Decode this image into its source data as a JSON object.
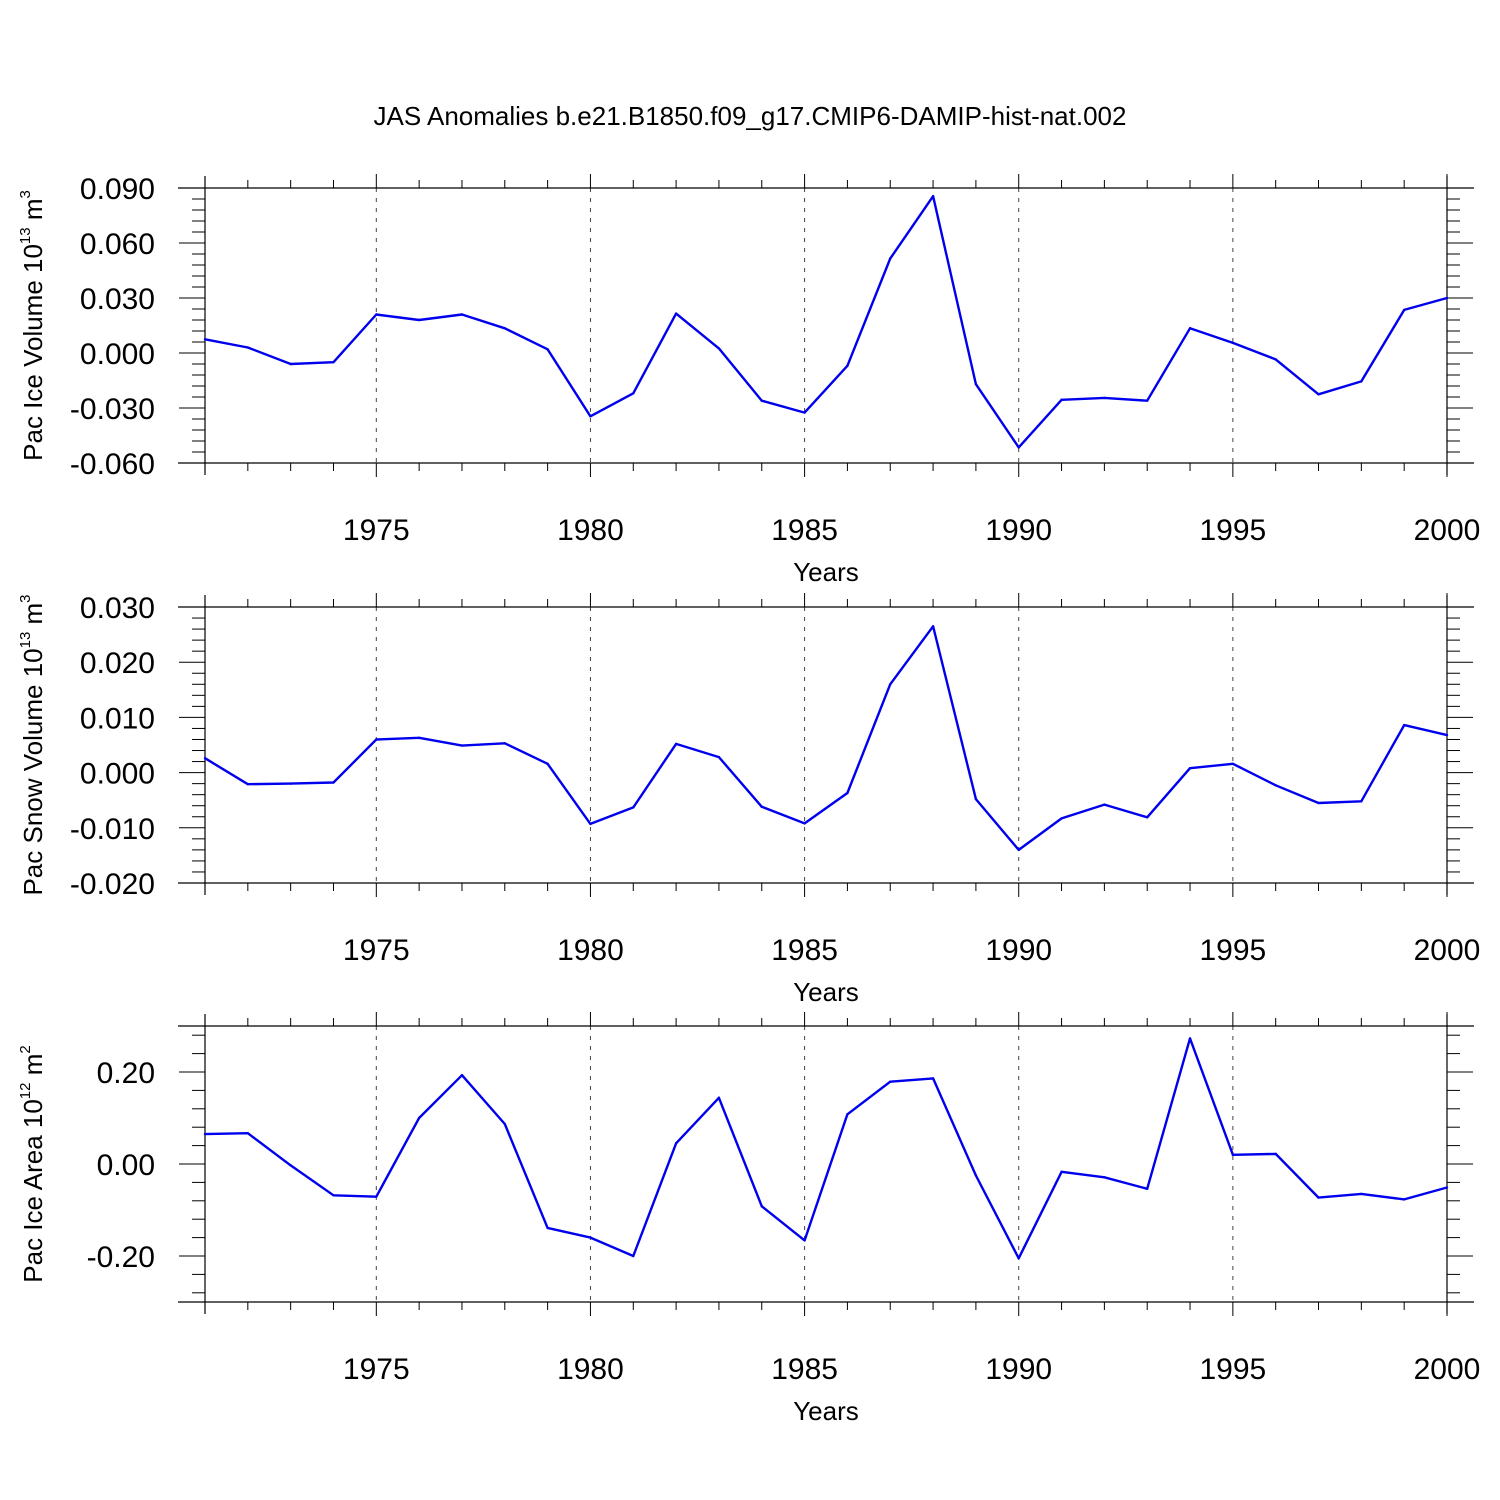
{
  "title": "JAS Anomalies b.e21.B1850.f09_g17.CMIP6-DAMIP-hist-nat.002",
  "line_color": "#0000ee",
  "chart_data": [
    {
      "type": "line",
      "ylabel": "Pac Ice Volume 10",
      "ylabel_sup": "13",
      "ylabel_unit": "m",
      "ylabel_unit_sup": "3",
      "xlabel": "Years",
      "xlim": [
        1971,
        2000
      ],
      "ylim": [
        -0.06,
        0.09
      ],
      "yticks": [
        -0.06,
        -0.03,
        0.0,
        0.03,
        0.06,
        0.09
      ],
      "ytick_labels": [
        "-0.060",
        "-0.030",
        "0.000",
        "0.030",
        "0.060",
        "0.090"
      ],
      "xticks": [
        1975,
        1980,
        1985,
        1990,
        1995,
        2000
      ],
      "xtick_labels": [
        "1975",
        "1980",
        "1985",
        "1990",
        "1995",
        "2000"
      ],
      "x": [
        1971,
        1972,
        1973,
        1974,
        1975,
        1976,
        1977,
        1978,
        1979,
        1980,
        1981,
        1982,
        1983,
        1984,
        1985,
        1986,
        1987,
        1988,
        1989,
        1990,
        1991,
        1992,
        1993,
        1994,
        1995,
        1996,
        1997,
        1998,
        1999,
        2000
      ],
      "y": [
        0.0075,
        0.003,
        -0.006,
        -0.005,
        0.021,
        0.018,
        0.021,
        0.0135,
        0.002,
        -0.0345,
        -0.022,
        0.0215,
        0.0025,
        -0.026,
        -0.0325,
        -0.007,
        0.0515,
        0.0855,
        -0.017,
        -0.0515,
        -0.0255,
        -0.0245,
        -0.026,
        0.0135,
        0.0055,
        -0.0035,
        -0.0225,
        -0.0155,
        0.0235,
        0.03
      ]
    },
    {
      "type": "line",
      "ylabel": "Pac Snow Volume 10",
      "ylabel_sup": "13",
      "ylabel_unit": "m",
      "ylabel_unit_sup": "3",
      "xlabel": "Years",
      "xlim": [
        1971,
        2000
      ],
      "ylim": [
        -0.02,
        0.03
      ],
      "yticks": [
        -0.02,
        -0.01,
        0.0,
        0.01,
        0.02,
        0.03
      ],
      "ytick_labels": [
        "-0.020",
        "-0.010",
        "0.000",
        "0.010",
        "0.020",
        "0.030"
      ],
      "xticks": [
        1975,
        1980,
        1985,
        1990,
        1995,
        2000
      ],
      "xtick_labels": [
        "1975",
        "1980",
        "1985",
        "1990",
        "1995",
        "2000"
      ],
      "x": [
        1971,
        1972,
        1973,
        1974,
        1975,
        1976,
        1977,
        1978,
        1979,
        1980,
        1981,
        1982,
        1983,
        1984,
        1985,
        1986,
        1987,
        1988,
        1989,
        1990,
        1991,
        1992,
        1993,
        1994,
        1995,
        1996,
        1997,
        1998,
        1999,
        2000
      ],
      "y": [
        0.0026,
        -0.0021,
        -0.002,
        -0.0018,
        0.006,
        0.0063,
        0.0049,
        0.0053,
        0.0016,
        -0.0093,
        -0.0063,
        0.0052,
        0.0028,
        -0.0062,
        -0.0092,
        -0.0037,
        0.016,
        0.0265,
        -0.0048,
        -0.014,
        -0.0083,
        -0.0058,
        -0.0081,
        0.0008,
        0.0016,
        -0.0023,
        -0.0055,
        -0.0052,
        0.0086,
        0.0068
      ]
    },
    {
      "type": "line",
      "ylabel": "Pac Ice Area 10",
      "ylabel_sup": "12",
      "ylabel_unit": "m",
      "ylabel_unit_sup": "2",
      "xlabel": "Years",
      "xlim": [
        1971,
        2000
      ],
      "ylim": [
        -0.3,
        0.3
      ],
      "yticks": [
        -0.2,
        0.0,
        0.2
      ],
      "ytick_labels": [
        "-0.20",
        "0.00",
        "0.20"
      ],
      "xticks": [
        1975,
        1980,
        1985,
        1990,
        1995,
        2000
      ],
      "xtick_labels": [
        "1975",
        "1980",
        "1985",
        "1990",
        "1995",
        "2000"
      ],
      "x": [
        1971,
        1972,
        1973,
        1974,
        1975,
        1976,
        1977,
        1978,
        1979,
        1980,
        1981,
        1982,
        1983,
        1984,
        1985,
        1986,
        1987,
        1988,
        1989,
        1990,
        1991,
        1992,
        1993,
        1994,
        1995,
        1996,
        1997,
        1998,
        1999,
        2000
      ],
      "y": [
        0.065,
        0.067,
        -0.003,
        -0.068,
        -0.071,
        0.1,
        0.193,
        0.087,
        -0.139,
        -0.16,
        -0.2,
        0.045,
        0.144,
        -0.092,
        -0.166,
        0.108,
        0.179,
        0.186,
        -0.025,
        -0.205,
        -0.017,
        -0.029,
        -0.054,
        0.273,
        0.02,
        0.022,
        -0.073,
        -0.065,
        -0.077,
        -0.051
      ]
    }
  ]
}
